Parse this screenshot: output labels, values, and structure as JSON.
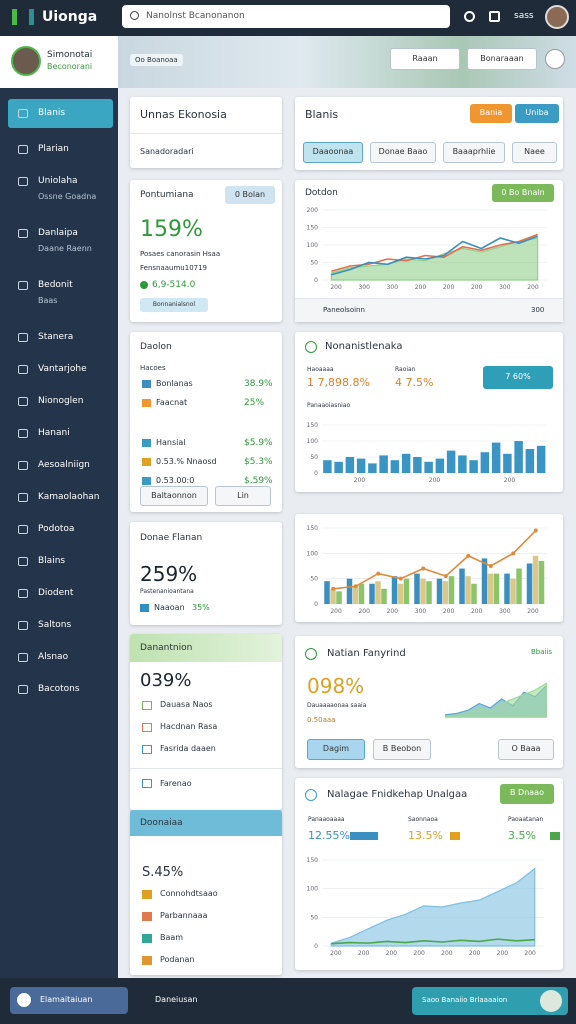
{
  "topbar": {
    "logo": "Uionga",
    "search": "Nanolnst Bcanonanon",
    "user": "sass"
  },
  "profile": {
    "name": "Simonotai",
    "role": "Beconorani"
  },
  "sidebar": [
    {
      "label": "Blanis"
    },
    {
      "label": "Plarian"
    },
    {
      "label": "Uniolaha",
      "sub": "Ossne Goadna"
    },
    {
      "label": "Danlaipa",
      "sub": "Daane Raenn"
    },
    {
      "label": "Bedonit",
      "sub": "Baas"
    },
    {
      "label": "Stanera"
    },
    {
      "label": "Vantarjohe"
    },
    {
      "label": "Nionoglen"
    },
    {
      "label": "Hanani"
    },
    {
      "label": "Aesoalniign"
    },
    {
      "label": "Kamaolaohan"
    },
    {
      "label": "Podotoa"
    },
    {
      "label": "Blains"
    },
    {
      "label": "Diodent"
    },
    {
      "label": "Saltons"
    },
    {
      "label": "Alsnao"
    },
    {
      "label": "Bacotons"
    }
  ],
  "header": {
    "tag": "Oo Boanoaa",
    "filters": [
      "Raaan",
      "Bonaraaan"
    ]
  },
  "cards": {
    "overview": {
      "title": "Unnas Ekonosia",
      "subtitle": "Sanadoradari"
    },
    "blanis": {
      "title": "Blanis",
      "buttons": [
        "Bania",
        "Uniba"
      ],
      "tabs": [
        "Daaoonaa",
        "Donae Baao",
        "Baaaprhlie",
        "Naee"
      ]
    },
    "pontumiana": {
      "title": "Pontumiana",
      "badge": "0 Bolan",
      "big": "159%",
      "lines": [
        "Posaes canorasin  Hsaa",
        "Fensnaaumu10719"
      ],
      "stat": "6,9-514.0",
      "button": "Bonnanialsnol"
    },
    "daolon": {
      "title": "Daolon",
      "header": "Hacoes",
      "rows": [
        [
          "Bonlanas",
          "38.9%"
        ],
        [
          "Faacnat",
          "25%"
        ],
        [
          "Hansial",
          "$5.9%"
        ],
        [
          "0.53.% Nnaosd",
          "$5.3%"
        ],
        [
          "0.53.00:0",
          "$.59%"
        ]
      ],
      "buttons": [
        "Baltaonnon",
        "Lin"
      ]
    },
    "flanan": {
      "title": "Donae Flanan",
      "big": "259%",
      "sub": "Pastenanioantana",
      "stat": "Naaoan",
      "stat_value": "35%"
    },
    "danantnion": {
      "title": "Danantnion",
      "big": "039%",
      "items": [
        "Dauasa Naos",
        "Hacdnan Rasa",
        "Fasrida daaen"
      ],
      "extra": "Farenao"
    },
    "doonaiaa": {
      "title": "Doonaiaa",
      "big": "S.45%",
      "items": [
        "Connohdtsaao",
        "Parbannaaa",
        "Baam",
        "Podanan"
      ]
    },
    "fanyrind": {
      "title": "Natian Fanyrind",
      "tag": "Bbaiis",
      "big": "098%",
      "sub": "Dauaaaaonaa saaia",
      "stat": "0.50aaa",
      "buttons": [
        "Dagim",
        "B Beobon",
        "O Baaa"
      ]
    },
    "nonanist": {
      "title": "Nonanistlenaka",
      "metrics": [
        [
          "Haoaaaa",
          "1 7,898.8%"
        ],
        [
          "Raoian",
          "4 7.5%"
        ]
      ],
      "button": "7 60%",
      "label": "Panaaoiasniao"
    },
    "unalgaa": {
      "title": "Nalagae Fnidkehap Unalgaa",
      "button": "B Dnaao",
      "metrics": [
        [
          "Panaaoaaaa",
          "12.55%"
        ],
        [
          "Saonnaoa",
          "13.5%"
        ],
        [
          "Paoaatanan",
          "3.5%"
        ]
      ]
    },
    "dotdon": {
      "title": "Dotdon",
      "button": "0 Bo Bnaln",
      "footer": "Paneolsoinn",
      "select": "300"
    }
  },
  "charts": {
    "line": {
      "type": "line",
      "ylim": [
        0,
        200
      ],
      "yticks": [
        0,
        50,
        100,
        150,
        200
      ],
      "xlabels": [
        "200",
        "300",
        "300",
        "200",
        "200",
        "200",
        "300",
        "200"
      ],
      "series": [
        {
          "kind": "area",
          "color": "#93cf8c",
          "values": [
            20,
            35,
            40,
            45,
            60,
            55,
            75,
            90,
            80,
            95,
            110,
            120
          ]
        },
        {
          "kind": "line",
          "color": "#e0704a",
          "values": [
            25,
            40,
            45,
            60,
            55,
            70,
            65,
            95,
            85,
            100,
            110,
            130
          ]
        },
        {
          "kind": "line",
          "color": "#3a8fc0",
          "values": [
            15,
            30,
            50,
            45,
            65,
            60,
            70,
            110,
            90,
            120,
            105,
            125
          ]
        }
      ]
    },
    "bars": {
      "type": "bar",
      "ylim": [
        0,
        150
      ],
      "yticks": [
        0,
        50,
        100,
        150
      ],
      "xlabels": [
        "200",
        "200",
        "200"
      ],
      "series": [
        {
          "kind": "bar",
          "color": "#3a95c4",
          "values": [
            40,
            35,
            50,
            45,
            30,
            55,
            40,
            60,
            50,
            35,
            45,
            70,
            55,
            40,
            65,
            95,
            60,
            100,
            75,
            85
          ]
        }
      ]
    },
    "combo": {
      "type": "combo",
      "ylim": [
        0,
        150
      ],
      "yticks": [
        0,
        50,
        100,
        150
      ],
      "xlabels": [
        "200",
        "200",
        "200",
        "300",
        "200",
        "200",
        "300",
        "200"
      ],
      "series": [
        {
          "kind": "bar",
          "color": "#3a8fc0",
          "values": [
            45,
            50,
            40,
            55,
            60,
            50,
            70,
            90,
            60,
            80
          ]
        },
        {
          "kind": "bar",
          "color": "#d9c88a",
          "values": [
            30,
            35,
            45,
            40,
            50,
            45,
            55,
            60,
            50,
            95
          ]
        },
        {
          "kind": "bar",
          "color": "#8cc46a",
          "values": [
            25,
            40,
            30,
            50,
            45,
            55,
            40,
            60,
            70,
            85
          ]
        },
        {
          "kind": "line",
          "color": "#e08a3c",
          "values": [
            30,
            35,
            60,
            50,
            70,
            55,
            95,
            75,
            100,
            145
          ]
        }
      ]
    },
    "mini": {
      "type": "area",
      "ylim": [
        0,
        100
      ],
      "series": [
        {
          "kind": "area",
          "color": "#5aa7cf",
          "values": [
            5,
            8,
            15,
            30,
            20,
            40,
            25,
            55,
            45,
            70
          ]
        },
        {
          "kind": "area",
          "color": "#9fd79a",
          "values": [
            2,
            4,
            10,
            20,
            15,
            30,
            40,
            50,
            60,
            75
          ]
        }
      ]
    },
    "area": {
      "type": "area",
      "ylim": [
        0,
        150
      ],
      "yticks": [
        0,
        50,
        100,
        150
      ],
      "xlabels": [
        "200",
        "200",
        "200",
        "200",
        "200",
        "200",
        "200",
        "200"
      ],
      "series": [
        {
          "kind": "area",
          "color": "#7ec0e0",
          "values": [
            5,
            15,
            30,
            45,
            55,
            70,
            68,
            75,
            80,
            95,
            110,
            135
          ]
        },
        {
          "kind": "line",
          "color": "#49a84a",
          "values": [
            4,
            6,
            5,
            8,
            6,
            9,
            7,
            10,
            8,
            12,
            9,
            11
          ]
        }
      ]
    }
  },
  "bottom": {
    "left": "Elamaitaiuan",
    "mid": "Daneiusan",
    "right": "Saoo Banaiio Brlaaaaion"
  }
}
